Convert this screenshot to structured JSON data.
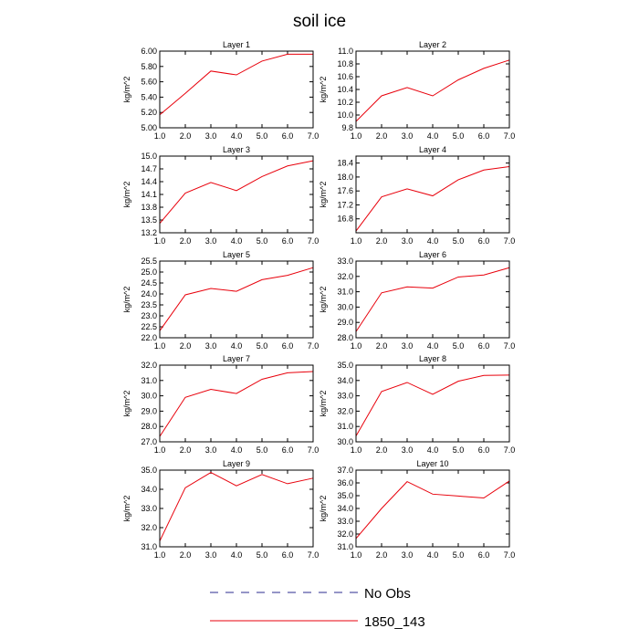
{
  "title": "soil ice",
  "legend": {
    "placement": "bottom",
    "entries": [
      {
        "label": "No Obs",
        "color": "#2b2b8f",
        "dash": true
      },
      {
        "label": "1850_143",
        "color": "#e8000b",
        "dash": false
      }
    ]
  },
  "chart_data": [
    {
      "type": "line",
      "title": "Layer 1",
      "ylabel": "kg/m^2",
      "xlim": [
        1.0,
        7.0
      ],
      "xticks": [
        1.0,
        2.0,
        3.0,
        4.0,
        5.0,
        6.0,
        7.0
      ],
      "x": [
        1,
        2,
        3,
        4,
        5,
        6,
        7
      ],
      "ylim": [
        5.0,
        6.0
      ],
      "yticks": [
        5.0,
        5.2,
        5.4,
        5.6,
        5.8,
        6.0
      ],
      "ydec": 2,
      "series": [
        {
          "name": "1850_143",
          "color": "#e8000b",
          "values": [
            5.17,
            5.45,
            5.74,
            5.69,
            5.87,
            5.96,
            5.96
          ]
        }
      ]
    },
    {
      "type": "line",
      "title": "Layer 2",
      "ylabel": "kg/m^2",
      "xlim": [
        1.0,
        7.0
      ],
      "xticks": [
        1.0,
        2.0,
        3.0,
        4.0,
        5.0,
        6.0,
        7.0
      ],
      "x": [
        1,
        2,
        3,
        4,
        5,
        6,
        7
      ],
      "ylim": [
        9.8,
        11.0
      ],
      "yticks": [
        9.8,
        10.0,
        10.2,
        10.4,
        10.6,
        10.8,
        11.0
      ],
      "ydec": 1,
      "series": [
        {
          "name": "1850_143",
          "color": "#e8000b",
          "values": [
            9.9,
            10.3,
            10.43,
            10.3,
            10.55,
            10.73,
            10.86
          ]
        }
      ]
    },
    {
      "type": "line",
      "title": "Layer 3",
      "ylabel": "kg/m^2",
      "xlim": [
        1.0,
        7.0
      ],
      "xticks": [
        1.0,
        2.0,
        3.0,
        4.0,
        5.0,
        6.0,
        7.0
      ],
      "x": [
        1,
        2,
        3,
        4,
        5,
        6,
        7
      ],
      "ylim": [
        13.2,
        15.0
      ],
      "yticks": [
        13.2,
        13.5,
        13.8,
        14.1,
        14.4,
        14.7,
        15.0
      ],
      "ydec": 1,
      "series": [
        {
          "name": "1850_143",
          "color": "#e8000b",
          "values": [
            13.42,
            14.13,
            14.38,
            14.19,
            14.52,
            14.77,
            14.89
          ]
        }
      ]
    },
    {
      "type": "line",
      "title": "Layer 4",
      "ylabel": "kg/m^2",
      "xlim": [
        1.0,
        7.0
      ],
      "xticks": [
        1.0,
        2.0,
        3.0,
        4.0,
        5.0,
        6.0,
        7.0
      ],
      "x": [
        1,
        2,
        3,
        4,
        5,
        6,
        7
      ],
      "ylim": [
        16.4,
        18.6
      ],
      "yticks": [
        16.8,
        17.2,
        17.6,
        18.0,
        18.4
      ],
      "ydec": 1,
      "series": [
        {
          "name": "1850_143",
          "color": "#e8000b",
          "values": [
            16.45,
            17.43,
            17.66,
            17.46,
            17.92,
            18.2,
            18.3
          ]
        }
      ]
    },
    {
      "type": "line",
      "title": "Layer 5",
      "ylabel": "kg/m^2",
      "xlim": [
        1.0,
        7.0
      ],
      "xticks": [
        1.0,
        2.0,
        3.0,
        4.0,
        5.0,
        6.0,
        7.0
      ],
      "x": [
        1,
        2,
        3,
        4,
        5,
        6,
        7
      ],
      "ylim": [
        22.0,
        25.5
      ],
      "yticks": [
        22.0,
        22.5,
        23.0,
        23.5,
        24.0,
        24.5,
        25.0,
        25.5
      ],
      "ydec": 1,
      "series": [
        {
          "name": "1850_143",
          "color": "#e8000b",
          "values": [
            22.32,
            23.96,
            24.25,
            24.12,
            24.65,
            24.85,
            25.2
          ]
        }
      ]
    },
    {
      "type": "line",
      "title": "Layer 6",
      "ylabel": "kg/m^2",
      "xlim": [
        1.0,
        7.0
      ],
      "xticks": [
        1.0,
        2.0,
        3.0,
        4.0,
        5.0,
        6.0,
        7.0
      ],
      "x": [
        1,
        2,
        3,
        4,
        5,
        6,
        7
      ],
      "ylim": [
        28.0,
        33.0
      ],
      "yticks": [
        28.0,
        29.0,
        30.0,
        31.0,
        32.0,
        33.0
      ],
      "ydec": 1,
      "series": [
        {
          "name": "1850_143",
          "color": "#e8000b",
          "values": [
            28.4,
            30.93,
            31.32,
            31.24,
            31.96,
            32.09,
            32.57
          ]
        }
      ]
    },
    {
      "type": "line",
      "title": "Layer 7",
      "ylabel": "kg/m^2",
      "xlim": [
        1.0,
        7.0
      ],
      "xticks": [
        1.0,
        2.0,
        3.0,
        4.0,
        5.0,
        6.0,
        7.0
      ],
      "x": [
        1,
        2,
        3,
        4,
        5,
        6,
        7
      ],
      "ylim": [
        27.0,
        32.0
      ],
      "yticks": [
        27.0,
        28.0,
        29.0,
        30.0,
        31.0,
        32.0
      ],
      "ydec": 1,
      "series": [
        {
          "name": "1850_143",
          "color": "#e8000b",
          "values": [
            27.35,
            29.9,
            30.42,
            30.15,
            31.08,
            31.5,
            31.58
          ]
        }
      ]
    },
    {
      "type": "line",
      "title": "Layer 8",
      "ylabel": "kg/m^2",
      "xlim": [
        1.0,
        7.0
      ],
      "xticks": [
        1.0,
        2.0,
        3.0,
        4.0,
        5.0,
        6.0,
        7.0
      ],
      "x": [
        1,
        2,
        3,
        4,
        5,
        6,
        7
      ],
      "ylim": [
        30.0,
        35.0
      ],
      "yticks": [
        30.0,
        31.0,
        32.0,
        33.0,
        34.0,
        35.0
      ],
      "ydec": 1,
      "series": [
        {
          "name": "1850_143",
          "color": "#e8000b",
          "values": [
            30.38,
            33.28,
            33.87,
            33.1,
            33.95,
            34.33,
            34.35
          ]
        }
      ]
    },
    {
      "type": "line",
      "title": "Layer 9",
      "ylabel": "kg/m^2",
      "xlim": [
        1.0,
        7.0
      ],
      "xticks": [
        1.0,
        2.0,
        3.0,
        4.0,
        5.0,
        6.0,
        7.0
      ],
      "x": [
        1,
        2,
        3,
        4,
        5,
        6,
        7
      ],
      "ylim": [
        31.0,
        35.0
      ],
      "yticks": [
        31.0,
        32.0,
        33.0,
        34.0,
        35.0
      ],
      "ydec": 1,
      "series": [
        {
          "name": "1850_143",
          "color": "#e8000b",
          "values": [
            31.3,
            34.08,
            34.88,
            34.18,
            34.77,
            34.29,
            34.58
          ]
        }
      ]
    },
    {
      "type": "line",
      "title": "Layer 10",
      "ylabel": "kg/m^2",
      "xlim": [
        1.0,
        7.0
      ],
      "xticks": [
        1.0,
        2.0,
        3.0,
        4.0,
        5.0,
        6.0,
        7.0
      ],
      "x": [
        1,
        2,
        3,
        4,
        5,
        6,
        7
      ],
      "ylim": [
        31.0,
        37.0
      ],
      "yticks": [
        31.0,
        32.0,
        33.0,
        34.0,
        35.0,
        36.0,
        37.0
      ],
      "ydec": 1,
      "series": [
        {
          "name": "1850_143",
          "color": "#e8000b",
          "values": [
            31.65,
            34.0,
            36.1,
            35.12,
            34.97,
            34.82,
            36.15
          ]
        }
      ]
    }
  ]
}
